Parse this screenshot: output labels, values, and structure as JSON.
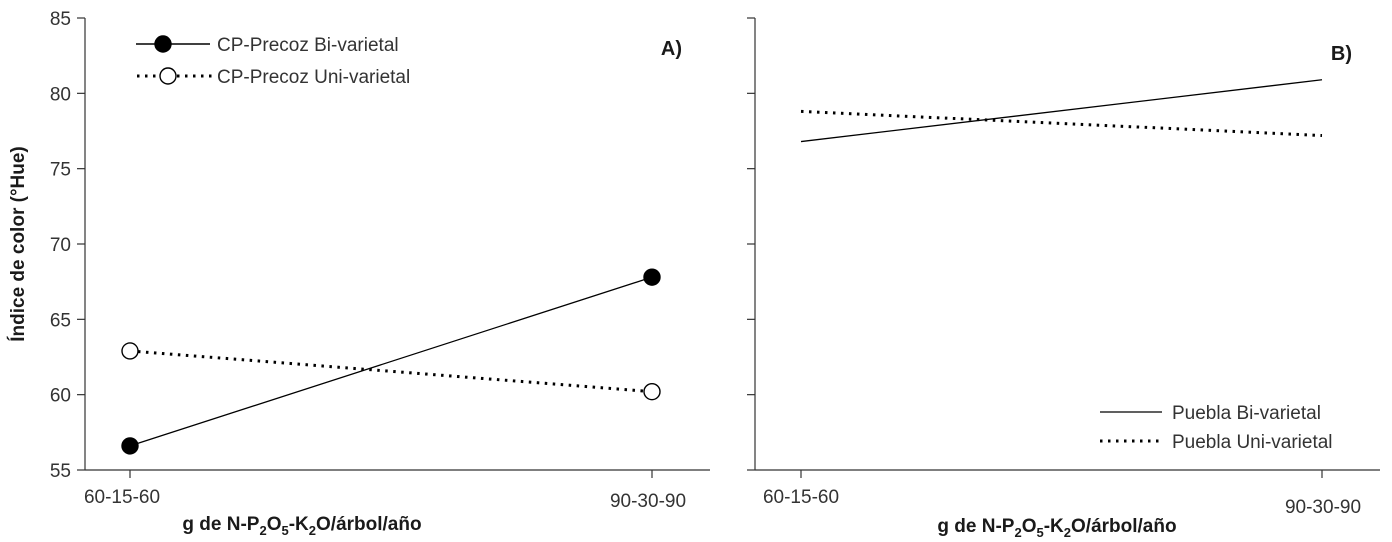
{
  "chart_data": [
    {
      "type": "line",
      "panel_label": "A)",
      "x": [
        "60-15-60",
        "90-30-90"
      ],
      "xlabel_parts": {
        "prefix": "g de N-P",
        "sub1": "2",
        "mid1": "O",
        "sub2": "5",
        "mid2": "-K",
        "sub3": "2",
        "suffix": "O/árbol/año"
      },
      "ylabel": "Índice de color (°Hue)",
      "ylim": [
        55,
        85
      ],
      "yticks": [
        "55",
        "60",
        "65",
        "70",
        "75",
        "80",
        "85"
      ],
      "legend_position": "top-left",
      "series": [
        {
          "name": "CP-Precoz Bi-varietal",
          "values": [
            56.6,
            67.8
          ],
          "marker": "filled-circle",
          "line": "solid"
        },
        {
          "name": "CP-Precoz Uni-varietal",
          "values": [
            62.9,
            60.2
          ],
          "marker": "open-circle",
          "line": "dotted"
        }
      ]
    },
    {
      "type": "line",
      "panel_label": "B)",
      "x": [
        "60-15-60",
        "90-30-90"
      ],
      "xlabel_parts": {
        "prefix": "g de N-P",
        "sub1": "2",
        "mid1": "O",
        "sub2": "5",
        "mid2": "-K",
        "sub3": "2",
        "suffix": "O/árbol/año"
      },
      "ylabel": "",
      "ylim": [
        55,
        85
      ],
      "legend_position": "bottom-right",
      "series": [
        {
          "name": "Puebla Bi-varietal",
          "values": [
            76.8,
            80.9
          ],
          "marker": "none",
          "line": "solid"
        },
        {
          "name": "Puebla Uni-varietal",
          "values": [
            78.8,
            77.2
          ],
          "marker": "none",
          "line": "dotted"
        }
      ]
    }
  ],
  "colors": {
    "line": "#000000",
    "axis": "#333333",
    "marker_fill": "#000000",
    "marker_open": "#ffffff"
  }
}
